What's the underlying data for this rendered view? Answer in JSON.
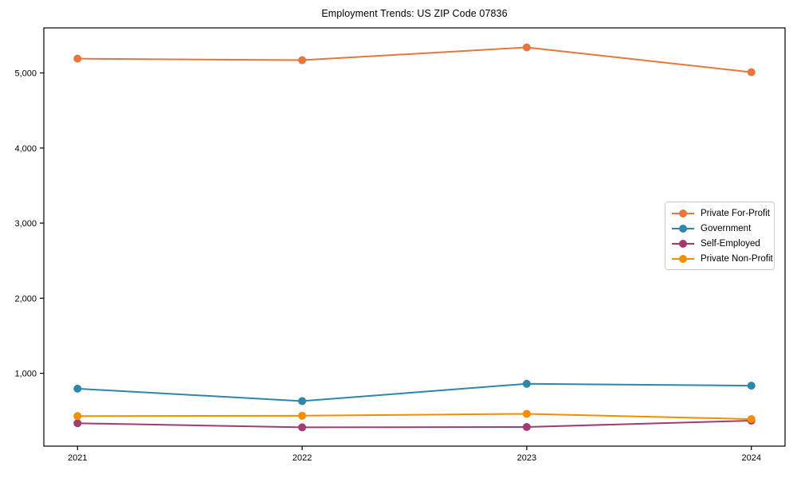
{
  "figure": {
    "background": "#ffffff",
    "axis_color": "#000000",
    "tick_label_color": "#000000"
  },
  "chart_data": {
    "type": "line",
    "title": "Employment Trends: US ZIP Code 07836",
    "xlabel": "",
    "ylabel": "",
    "x": [
      2021,
      2022,
      2023,
      2024
    ],
    "x_tick_labels": [
      "2021",
      "2022",
      "2023",
      "2024"
    ],
    "y_tick_values": [
      1000,
      2000,
      3000,
      4000,
      5000
    ],
    "y_tick_labels": [
      "1,000",
      "2,000",
      "3,000",
      "4,000",
      "5,000"
    ],
    "xlim": [
      2020.85,
      2024.15
    ],
    "ylim": [
      30,
      5600
    ],
    "grid": false,
    "legend_position": "center-right",
    "marker": "circle",
    "series": [
      {
        "name": "Private For-Profit",
        "color": "#E8763C",
        "values": [
          5190,
          5170,
          5340,
          5010
        ]
      },
      {
        "name": "Government",
        "color": "#2E86AB",
        "values": [
          795,
          630,
          860,
          835
        ]
      },
      {
        "name": "Self-Employed",
        "color": "#A23B72",
        "values": [
          335,
          280,
          285,
          370
        ]
      },
      {
        "name": "Private Non-Profit",
        "color": "#F18F01",
        "values": [
          430,
          435,
          460,
          390
        ]
      }
    ]
  }
}
